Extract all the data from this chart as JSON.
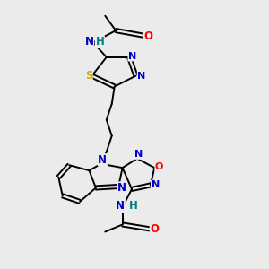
{
  "background_color": "#ebebeb",
  "figure_size": [
    3.0,
    3.0
  ],
  "dpi": 100,
  "colors": {
    "N": "#0000cc",
    "O": "#ff0000",
    "S": "#ccaa00",
    "H": "#008080",
    "C": "#000000",
    "bond": "#000000"
  },
  "lw": 1.4,
  "fs": 8.5
}
